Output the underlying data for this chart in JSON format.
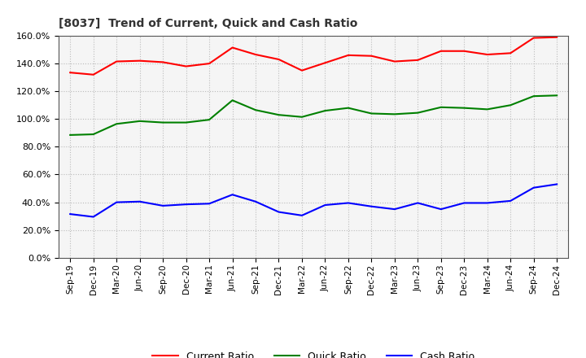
{
  "title": "[8037]  Trend of Current, Quick and Cash Ratio",
  "labels": [
    "Sep-19",
    "Dec-19",
    "Mar-20",
    "Jun-20",
    "Sep-20",
    "Dec-20",
    "Mar-21",
    "Jun-21",
    "Sep-21",
    "Dec-21",
    "Mar-22",
    "Jun-22",
    "Sep-22",
    "Dec-22",
    "Mar-23",
    "Jun-23",
    "Sep-23",
    "Dec-23",
    "Mar-24",
    "Jun-24",
    "Sep-24",
    "Dec-24"
  ],
  "current_ratio": [
    133.5,
    132.0,
    141.5,
    142.0,
    141.0,
    138.0,
    140.0,
    151.5,
    146.5,
    143.0,
    135.0,
    140.5,
    146.0,
    145.5,
    141.5,
    142.5,
    149.0,
    149.0,
    146.5,
    147.5,
    158.5,
    159.0
  ],
  "quick_ratio": [
    88.5,
    89.0,
    96.5,
    98.5,
    97.5,
    97.5,
    99.5,
    113.5,
    106.5,
    103.0,
    101.5,
    106.0,
    108.0,
    104.0,
    103.5,
    104.5,
    108.5,
    108.0,
    107.0,
    110.0,
    116.5,
    117.0
  ],
  "cash_ratio": [
    31.5,
    29.5,
    40.0,
    40.5,
    37.5,
    38.5,
    39.0,
    45.5,
    40.5,
    33.0,
    30.5,
    38.0,
    39.5,
    37.0,
    35.0,
    39.5,
    35.0,
    39.5,
    39.5,
    41.0,
    50.5,
    53.0
  ],
  "current_color": "#FF0000",
  "quick_color": "#008000",
  "cash_color": "#0000FF",
  "ylim": [
    0,
    160
  ],
  "yticks": [
    0,
    20,
    40,
    60,
    80,
    100,
    120,
    140,
    160
  ],
  "background_color": "#ffffff",
  "plot_bg_color": "#f5f5f5",
  "grid_color": "#bbbbbb"
}
